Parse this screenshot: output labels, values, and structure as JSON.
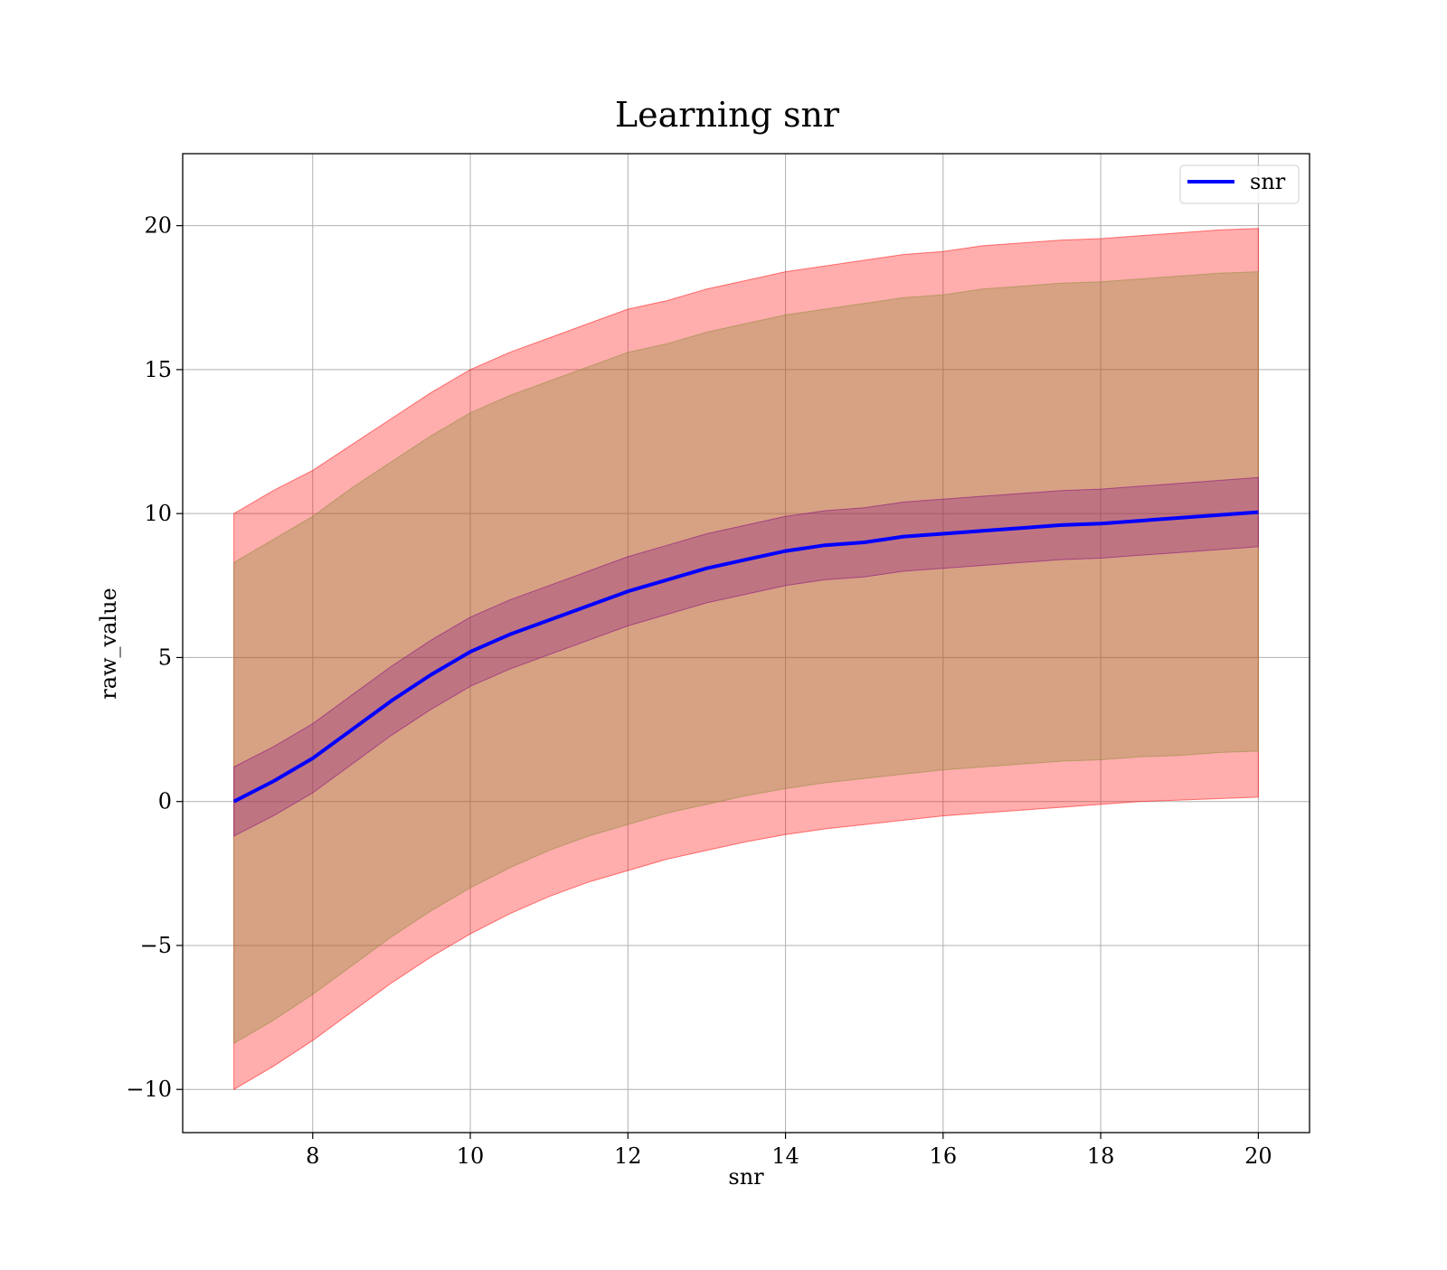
{
  "chart_data": {
    "type": "line",
    "title": "Learning snr",
    "xlabel": "snr",
    "ylabel": "raw_value",
    "xlim": [
      6.35,
      20.65
    ],
    "ylim": [
      -11.5,
      22.5
    ],
    "xticks": [
      8,
      10,
      12,
      14,
      16,
      18,
      20
    ],
    "xtick_labels": [
      "8",
      "10",
      "12",
      "14",
      "16",
      "18",
      "20"
    ],
    "yticks": [
      -10,
      -5,
      0,
      5,
      10,
      15,
      20
    ],
    "ytick_labels": [
      "−10",
      "−5",
      "0",
      "5",
      "10",
      "15",
      "20"
    ],
    "grid": true,
    "legend": {
      "position": "top-right",
      "entries": [
        "snr"
      ]
    },
    "series": [
      {
        "name": "snr",
        "color": "#0000ff",
        "x": [
          7.0,
          7.5,
          8.0,
          8.5,
          9.0,
          9.5,
          10.0,
          10.5,
          11.0,
          11.5,
          12.0,
          12.5,
          13.0,
          13.5,
          14.0,
          14.5,
          15.0,
          15.5,
          16.0,
          16.5,
          17.0,
          17.5,
          18.0,
          18.5,
          19.0,
          19.5,
          20.0
        ],
        "y": [
          0.0,
          0.7,
          1.5,
          2.5,
          3.5,
          4.4,
          5.2,
          5.8,
          6.3,
          6.8,
          7.3,
          7.7,
          8.1,
          8.4,
          8.7,
          8.9,
          9.0,
          9.2,
          9.3,
          9.4,
          9.5,
          9.6,
          9.65,
          9.75,
          9.85,
          9.95,
          10.05
        ]
      }
    ],
    "bands": [
      {
        "role": "outer",
        "color": "#ff0000",
        "opacity": 0.32,
        "lower": [
          -10.0,
          -9.2,
          -8.3,
          -7.3,
          -6.3,
          -5.4,
          -4.6,
          -3.9,
          -3.3,
          -2.8,
          -2.4,
          -2.0,
          -1.7,
          -1.4,
          -1.15,
          -0.95,
          -0.8,
          -0.65,
          -0.5,
          -0.4,
          -0.3,
          -0.2,
          -0.1,
          0.0,
          0.05,
          0.1,
          0.15
        ],
        "upper": [
          10.0,
          10.8,
          11.5,
          12.4,
          13.3,
          14.2,
          15.0,
          15.6,
          16.1,
          16.6,
          17.1,
          17.4,
          17.8,
          18.1,
          18.4,
          18.6,
          18.8,
          19.0,
          19.1,
          19.3,
          19.4,
          19.5,
          19.55,
          19.65,
          19.75,
          19.85,
          19.9
        ]
      },
      {
        "role": "middle",
        "color": "#8b8b37",
        "opacity": 0.35,
        "lower": [
          -8.4,
          -7.6,
          -6.7,
          -5.7,
          -4.7,
          -3.8,
          -3.0,
          -2.3,
          -1.7,
          -1.2,
          -0.8,
          -0.4,
          -0.1,
          0.2,
          0.45,
          0.65,
          0.8,
          0.95,
          1.1,
          1.2,
          1.3,
          1.4,
          1.45,
          1.55,
          1.6,
          1.7,
          1.75
        ],
        "upper": [
          8.3,
          9.1,
          9.9,
          10.9,
          11.8,
          12.7,
          13.5,
          14.1,
          14.6,
          15.1,
          15.6,
          15.9,
          16.3,
          16.6,
          16.9,
          17.1,
          17.3,
          17.5,
          17.6,
          17.8,
          17.9,
          18.0,
          18.05,
          18.15,
          18.25,
          18.35,
          18.4
        ]
      },
      {
        "role": "inner",
        "color": "#800080",
        "opacity": 0.28,
        "lower": [
          -1.2,
          -0.5,
          0.3,
          1.3,
          2.3,
          3.2,
          4.0,
          4.6,
          5.1,
          5.6,
          6.1,
          6.5,
          6.9,
          7.2,
          7.5,
          7.7,
          7.8,
          8.0,
          8.1,
          8.2,
          8.3,
          8.4,
          8.45,
          8.55,
          8.65,
          8.75,
          8.85
        ],
        "upper": [
          1.2,
          1.9,
          2.7,
          3.7,
          4.7,
          5.6,
          6.4,
          7.0,
          7.5,
          8.0,
          8.5,
          8.9,
          9.3,
          9.6,
          9.9,
          10.1,
          10.2,
          10.4,
          10.5,
          10.6,
          10.7,
          10.8,
          10.85,
          10.95,
          11.05,
          11.15,
          11.25
        ]
      }
    ]
  }
}
